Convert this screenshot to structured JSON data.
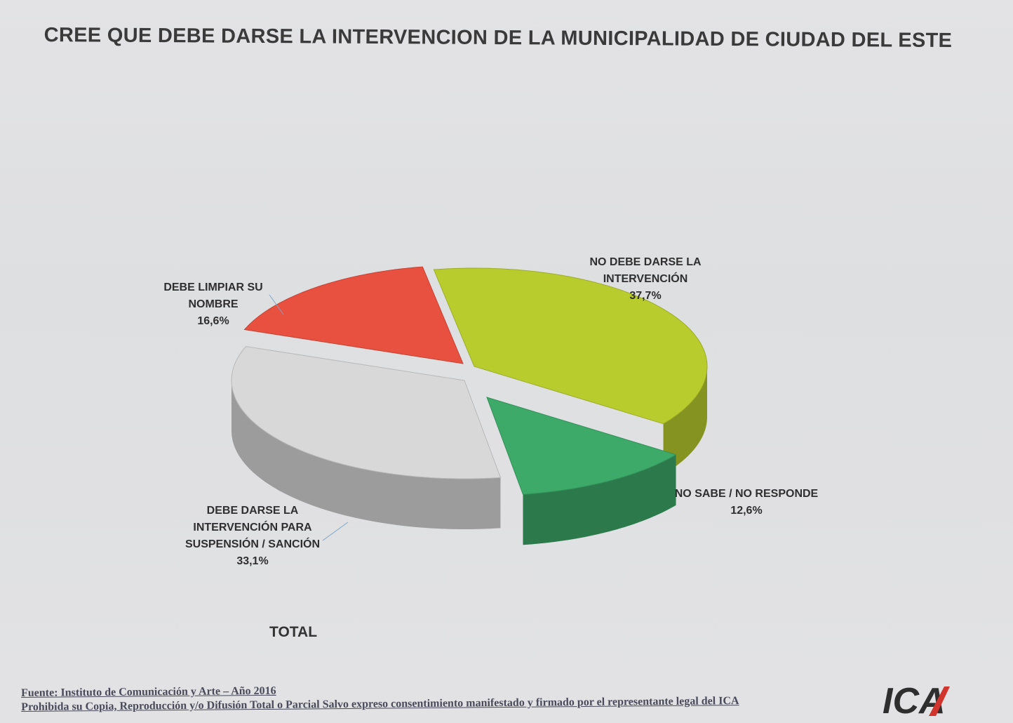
{
  "chart_data": {
    "type": "pie",
    "title": "CREE QUE DEBE DARSE LA INTERVENCION DE LA MUNICIPALIDAD DE CIUDAD DEL ESTE",
    "subtitle": "TOTAL",
    "slices": [
      {
        "label_lines": [
          "NO DEBE DARSE LA",
          "INTERVENCIÓN"
        ],
        "value_text": "37,7%",
        "value": 37.7,
        "color": "#b9cc2e"
      },
      {
        "label_lines": [
          "NO SABE / NO RESPONDE"
        ],
        "value_text": "12,6%",
        "value": 12.6,
        "color": "#3daa6a"
      },
      {
        "label_lines": [
          "DEBE DARSE LA",
          "INTERVENCIÓN PARA",
          "SUSPENSIÓN / SANCIÓN"
        ],
        "value_text": "33,1%",
        "value": 33.1,
        "color": "#d8d8d8"
      },
      {
        "label_lines": [
          "DEBE LIMPIAR SU",
          "NOMBRE"
        ],
        "value_text": "16,6%",
        "value": 16.6,
        "color": "#e8503f"
      }
    ]
  },
  "footer": {
    "source": "Fuente: Instituto de Comunicación y Arte – Año 2016",
    "notice": "Prohibida su Copia, Reproducción y/o Difusión Total o Parcial Salvo expreso consentimiento manifestado y firmado por el representante legal del ICA"
  },
  "logo": {
    "text": "ICA",
    "color": "#2e2e2e",
    "accent": "#d0342c"
  }
}
